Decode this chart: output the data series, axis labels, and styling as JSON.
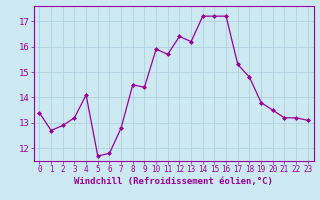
{
  "x": [
    0,
    1,
    2,
    3,
    4,
    5,
    6,
    7,
    8,
    9,
    10,
    11,
    12,
    13,
    14,
    15,
    16,
    17,
    18,
    19,
    20,
    21,
    22,
    23
  ],
  "y": [
    13.4,
    12.7,
    12.9,
    13.2,
    14.1,
    11.7,
    11.8,
    12.8,
    14.5,
    14.4,
    15.9,
    15.7,
    16.4,
    16.2,
    17.2,
    17.2,
    17.2,
    15.3,
    14.8,
    13.8,
    13.5,
    13.2,
    13.2,
    13.1
  ],
  "line_color": "#990099",
  "marker": "D",
  "marker_size": 2,
  "bg_color": "#cce8f0",
  "grid_color": "#aaccdd",
  "xlabel": "Windchill (Refroidissement éolien,°C)",
  "ylim": [
    11.5,
    17.6
  ],
  "xlim": [
    -0.5,
    23.5
  ],
  "yticks": [
    12,
    13,
    14,
    15,
    16,
    17
  ],
  "xticks": [
    0,
    1,
    2,
    3,
    4,
    5,
    6,
    7,
    8,
    9,
    10,
    11,
    12,
    13,
    14,
    15,
    16,
    17,
    18,
    19,
    20,
    21,
    22,
    23
  ],
  "tick_color": "#990099",
  "label_color": "#990099",
  "spine_color": "#990099"
}
